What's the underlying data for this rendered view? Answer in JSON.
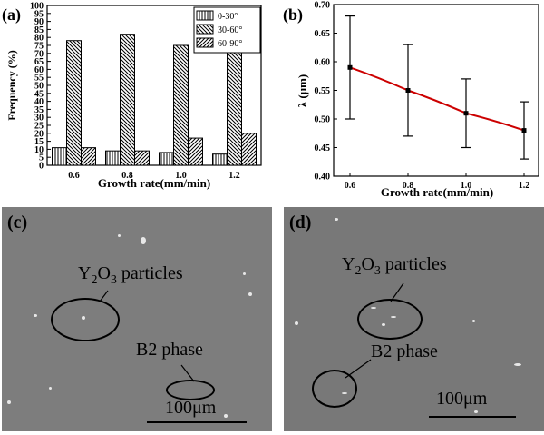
{
  "chart_data": [
    {
      "panel": "(a)",
      "type": "bar",
      "categories": [
        "0.6",
        "0.8",
        "1.0",
        "1.2"
      ],
      "series": [
        {
          "name": "0-30°",
          "values": [
            11,
            9,
            8,
            7
          ]
        },
        {
          "name": "30-60°",
          "values": [
            78,
            82,
            75,
            73
          ]
        },
        {
          "name": "60-90°",
          "values": [
            11,
            9,
            17,
            20
          ]
        }
      ],
      "xlabel": "Growth rate(mm/min)",
      "ylabel": "Frequency (%)",
      "ylim": [
        0,
        100
      ],
      "yticks": [
        "0",
        "5",
        "10",
        "15",
        "20",
        "25",
        "30",
        "35",
        "40",
        "45",
        "50",
        "55",
        "60",
        "65",
        "70",
        "75",
        "80",
        "85",
        "90",
        "95",
        "100"
      ],
      "legend": "top-right"
    },
    {
      "panel": "(b)",
      "type": "line",
      "x": [
        0.6,
        0.8,
        1.0,
        1.2
      ],
      "xticks": [
        "0.6",
        "0.8",
        "1.0",
        "1.2"
      ],
      "y": [
        0.59,
        0.55,
        0.51,
        0.48
      ],
      "error_low": [
        0.5,
        0.47,
        0.45,
        0.43
      ],
      "error_high": [
        0.68,
        0.63,
        0.57,
        0.53
      ],
      "xlabel": "Growth rate(mm/min)",
      "ylabel": "λ (μm)",
      "ylim": [
        0.4,
        0.7
      ],
      "yticks": [
        "0.40",
        "0.45",
        "0.50",
        "0.55",
        "0.60",
        "0.65",
        "0.70"
      ],
      "line_color": "#cc0000"
    }
  ],
  "panels": {
    "c": {
      "label": "(c)",
      "particles_label": "Y2O3 particles",
      "phase_label": "B2 phase",
      "scale_label": "100μm"
    },
    "d": {
      "label": "(d)",
      "particles_label": "Y2O3 particles",
      "phase_label": "B2 phase",
      "scale_label": "100μm"
    }
  }
}
